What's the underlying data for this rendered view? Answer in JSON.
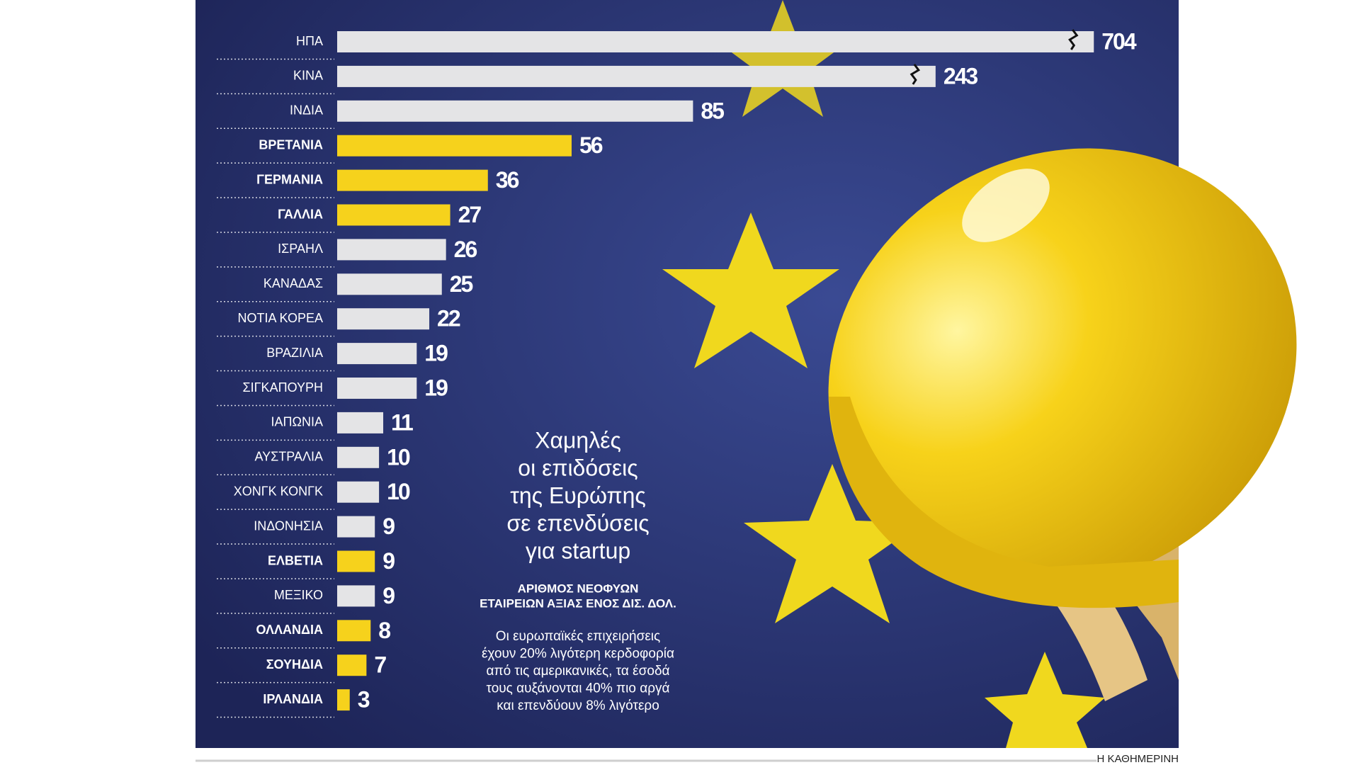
{
  "chart_data": {
    "type": "bar",
    "orientation": "horizontal",
    "title_lines": [
      "Χαμηλές",
      "οι επιδόσεις",
      "της Ευρώπης",
      "σε επενδύσεις",
      "για startup"
    ],
    "subtitle_lines": [
      "ΑΡΙΘΜΟΣ ΝΕΟΦΥΩΝ",
      "ΕΤΑΙΡΕΙΩΝ ΑΞΙΑΣ ΕΝΟΣ ΔΙΣ. ΔΟΛ."
    ],
    "note_lines": [
      "Οι ευρωπαϊκές επιχειρήσεις",
      "έχουν 20% λιγότερη κερδοφορία",
      "από τις αμερικανικές, τα έσοδά",
      "τους αυξάνονται 40% πιο αργά",
      "και επενδύουν 8% λιγότερο"
    ],
    "source": "Η ΚΑΘΗΜΕΡΙΝΗ",
    "categories": [
      "ΗΠΑ",
      "ΚΙΝΑ",
      "ΙΝΔΙΑ",
      "ΒΡΕΤΑΝΙΑ",
      "ΓΕΡΜΑΝΙΑ",
      "ΓΑΛΛΙΑ",
      "ΙΣΡΑΗΛ",
      "ΚΑΝΑΔΑΣ",
      "ΝΟΤΙΑ ΚΟΡΕΑ",
      "ΒΡΑΖΙΛΙΑ",
      "ΣΙΓΚΑΠΟΥΡΗ",
      "ΙΑΠΩΝΙΑ",
      "ΑΥΣΤΡΑΛΙΑ",
      "ΧΟΝΓΚ ΚΟΝΓΚ",
      "ΙΝΔΟΝΗΣΙΑ",
      "ΕΛΒΕΤΙΑ",
      "ΜΕΞΙΚΟ",
      "ΟΛΛΑΝΔΙΑ",
      "ΣΟΥΗΔΙΑ",
      "ΙΡΛΑΝΔΙΑ"
    ],
    "values": [
      704,
      243,
      85,
      56,
      36,
      27,
      26,
      25,
      22,
      19,
      19,
      11,
      10,
      10,
      9,
      9,
      9,
      8,
      7,
      3
    ],
    "highlight_color": "#f6d21c",
    "colors": [
      "#e4e4e6",
      "#e4e4e6",
      "#e4e4e6",
      "#f6d21c",
      "#f6d21c",
      "#f6d21c",
      "#e4e4e6",
      "#e4e4e6",
      "#e4e4e6",
      "#e4e4e6",
      "#e4e4e6",
      "#e4e4e6",
      "#e4e4e6",
      "#e4e4e6",
      "#e4e4e6",
      "#f6d21c",
      "#e4e4e6",
      "#f6d21c",
      "#f6d21c",
      "#f6d21c"
    ],
    "xlim": [
      0,
      134
    ],
    "axis_break": true
  }
}
